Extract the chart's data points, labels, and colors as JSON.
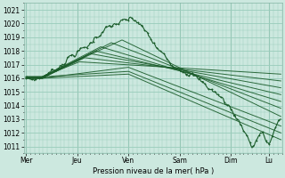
{
  "xlabel": "Pression niveau de la mer( hPa )",
  "bg_color": "#cce8df",
  "grid_color": "#99ccbb",
  "line_color": "#1a5c2a",
  "ylim": [
    1010.5,
    1021.5
  ],
  "yticks": [
    1011,
    1012,
    1013,
    1014,
    1015,
    1016,
    1017,
    1018,
    1019,
    1020,
    1021
  ],
  "xtick_labels": [
    "Mer",
    "Jeu",
    "Ven",
    "Sam",
    "Dim",
    "Lu"
  ],
  "xtick_positions": [
    0,
    48,
    96,
    144,
    192,
    228
  ],
  "total_points": 240,
  "n_major_minor_x": 4,
  "figsize": [
    3.2,
    2.0
  ],
  "dpi": 100
}
